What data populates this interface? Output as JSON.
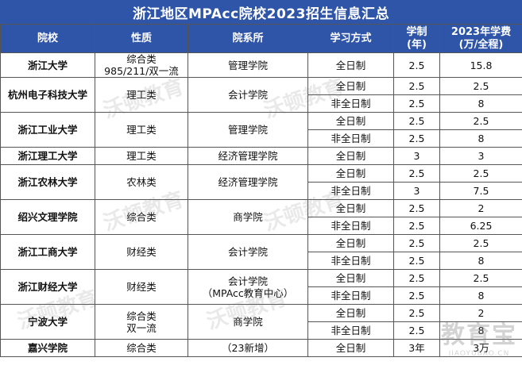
{
  "title": "浙江地区MPAcc院校2023招生信息汇总",
  "headers": {
    "school": "院校",
    "nature": "性质",
    "dept": "院系所",
    "mode": "学习方式",
    "years_line1": "学制",
    "years_line2": "(年)",
    "fee_line1": "2023年学费",
    "fee_line2": "(万/全程)"
  },
  "groups": [
    {
      "school": "浙江大学",
      "nature": [
        "综合类",
        "985/211/双一流"
      ],
      "dept": [
        "管理学院"
      ],
      "rows": [
        {
          "mode": "全日制",
          "years": "2.5",
          "fee": "15.8"
        }
      ]
    },
    {
      "school": "杭州电子科技大学",
      "nature": [
        "理工类"
      ],
      "dept": [
        "会计学院"
      ],
      "rows": [
        {
          "mode": "全日制",
          "years": "2.5",
          "fee": "2.5"
        },
        {
          "mode": "非全日制",
          "years": "2.5",
          "fee": "8"
        }
      ]
    },
    {
      "school": "浙江工业大学",
      "nature": [
        "理工类"
      ],
      "dept": [
        "管理学院"
      ],
      "rows": [
        {
          "mode": "全日制",
          "years": "2.5",
          "fee": "2.5"
        },
        {
          "mode": "非全日制",
          "years": "2.5",
          "fee": "8"
        }
      ]
    },
    {
      "school": "浙江理工大学",
      "nature": [
        "理工类"
      ],
      "dept": [
        "经济管理学院"
      ],
      "rows": [
        {
          "mode": "全日制",
          "years": "3",
          "fee": "3"
        }
      ]
    },
    {
      "school": "浙江农林大学",
      "nature": [
        "农林类"
      ],
      "dept": [
        "经济管理学院"
      ],
      "rows": [
        {
          "mode": "全日制",
          "years": "2.5",
          "fee": "2.5"
        },
        {
          "mode": "非全日制",
          "years": "3",
          "fee": "7.5"
        }
      ]
    },
    {
      "school": "绍兴文理学院",
      "nature": [
        "综合类"
      ],
      "dept": [
        "商学院"
      ],
      "rows": [
        {
          "mode": "全日制",
          "years": "2.5",
          "fee": "2"
        },
        {
          "mode": "非全日制",
          "years": "2.5",
          "fee": "6.25"
        }
      ]
    },
    {
      "school": "浙江工商大学",
      "nature": [
        "财经类"
      ],
      "dept": [
        "会计学院"
      ],
      "rows": [
        {
          "mode": "全日制",
          "years": "2.5",
          "fee": "2.5"
        },
        {
          "mode": "非全日制",
          "years": "2.5",
          "fee": "8"
        }
      ]
    },
    {
      "school": "浙江财经大学",
      "nature": [
        "财经类"
      ],
      "dept": [
        "会计学院",
        "（MPAcc教育中心）"
      ],
      "rows": [
        {
          "mode": "全日制",
          "years": "2.5",
          "fee": "2.5"
        },
        {
          "mode": "非全日制",
          "years": "2.5",
          "fee": "8"
        }
      ]
    },
    {
      "school": "宁波大学",
      "nature": [
        "综合类",
        "双一流"
      ],
      "dept": [
        "商学院"
      ],
      "rows": [
        {
          "mode": "全日制",
          "years": "2.5",
          "fee": "2"
        },
        {
          "mode": "非全日制",
          "years": "2.5",
          "fee": "8"
        }
      ]
    },
    {
      "school": "嘉兴学院",
      "nature": [
        "综合类"
      ],
      "dept": [
        "（23新增）"
      ],
      "rows": [
        {
          "mode": "全日制",
          "years": "3年",
          "fee": "3万"
        }
      ]
    }
  ],
  "watermark": {
    "text": "沃顿教育",
    "logo_main": "教育宝",
    "logo_sub": "JIAOYUBAO.CN"
  }
}
